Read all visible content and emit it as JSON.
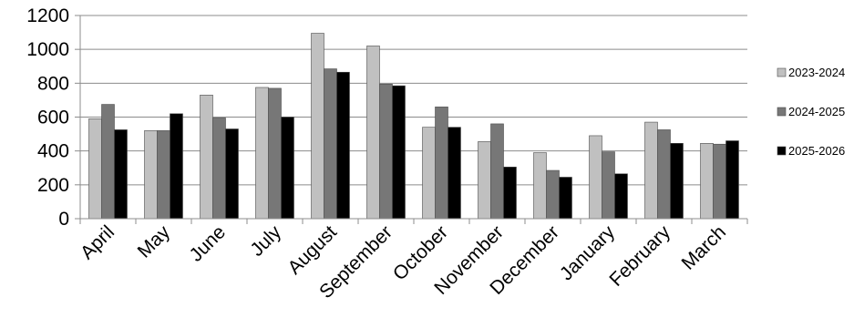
{
  "chart_data": {
    "type": "bar",
    "title": "",
    "xlabel": "",
    "ylabel": "",
    "ylim": [
      0,
      1200
    ],
    "yticks": [
      0,
      200,
      400,
      600,
      800,
      1000,
      1200
    ],
    "grid": "horizontal",
    "legend_position": "right",
    "categories": [
      "April",
      "May",
      "June",
      "July",
      "August",
      "September",
      "October",
      "November",
      "December",
      "January",
      "February",
      "March"
    ],
    "series": [
      {
        "name": "2023-2024",
        "color": "#c0c0c0",
        "values": [
          590,
          520,
          730,
          775,
          1095,
          1020,
          540,
          455,
          390,
          490,
          570,
          445
        ]
      },
      {
        "name": "2024-2025",
        "color": "#777777",
        "values": [
          675,
          520,
          595,
          770,
          885,
          795,
          660,
          560,
          285,
          395,
          525,
          440
        ]
      },
      {
        "name": "2025-2026",
        "color": "#000000",
        "values": [
          525,
          620,
          530,
          600,
          865,
          785,
          540,
          305,
          245,
          265,
          445,
          460
        ]
      }
    ]
  }
}
